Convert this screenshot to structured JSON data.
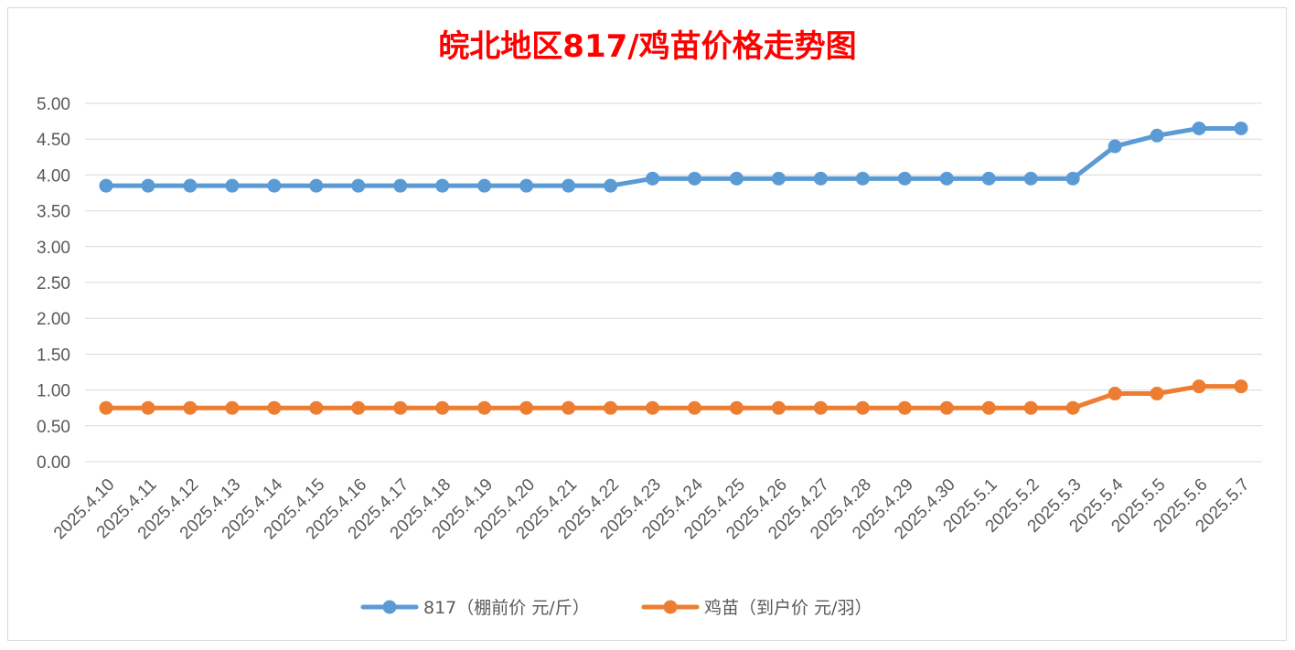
{
  "chart_data": {
    "type": "line",
    "title": "皖北地区817/鸡苗价格走势图",
    "categories": [
      "2025.4.10",
      "2025.4.11",
      "2025.4.12",
      "2025.4.13",
      "2025.4.14",
      "2025.4.15",
      "2025.4.16",
      "2025.4.17",
      "2025.4.18",
      "2025.4.19",
      "2025.4.20",
      "2025.4.21",
      "2025.4.22",
      "2025.4.23",
      "2025.4.24",
      "2025.4.25",
      "2025.4.26",
      "2025.4.27",
      "2025.4.28",
      "2025.4.29",
      "2025.4.30",
      "2025.5.1",
      "2025.5.2",
      "2025.5.3",
      "2025.5.4",
      "2025.5.5",
      "2025.5.6",
      "2025.5.7"
    ],
    "series": [
      {
        "name": "817（棚前价 元/斤）",
        "color": "#5b9bd5",
        "values": [
          3.85,
          3.85,
          3.85,
          3.85,
          3.85,
          3.85,
          3.85,
          3.85,
          3.85,
          3.85,
          3.85,
          3.85,
          3.85,
          3.95,
          3.95,
          3.95,
          3.95,
          3.95,
          3.95,
          3.95,
          3.95,
          3.95,
          3.95,
          3.95,
          4.4,
          4.55,
          4.65,
          4.65
        ]
      },
      {
        "name": "鸡苗（到户价 元/羽）",
        "color": "#ed7d31",
        "values": [
          0.75,
          0.75,
          0.75,
          0.75,
          0.75,
          0.75,
          0.75,
          0.75,
          0.75,
          0.75,
          0.75,
          0.75,
          0.75,
          0.75,
          0.75,
          0.75,
          0.75,
          0.75,
          0.75,
          0.75,
          0.75,
          0.75,
          0.75,
          0.75,
          0.95,
          0.95,
          1.05,
          1.05
        ]
      }
    ],
    "yticks": [
      "0.00",
      "0.50",
      "1.00",
      "1.50",
      "2.00",
      "2.50",
      "3.00",
      "3.50",
      "4.00",
      "4.50",
      "5.00"
    ],
    "ylim": [
      0,
      5
    ],
    "grid": true,
    "legend_position": "bottom"
  }
}
